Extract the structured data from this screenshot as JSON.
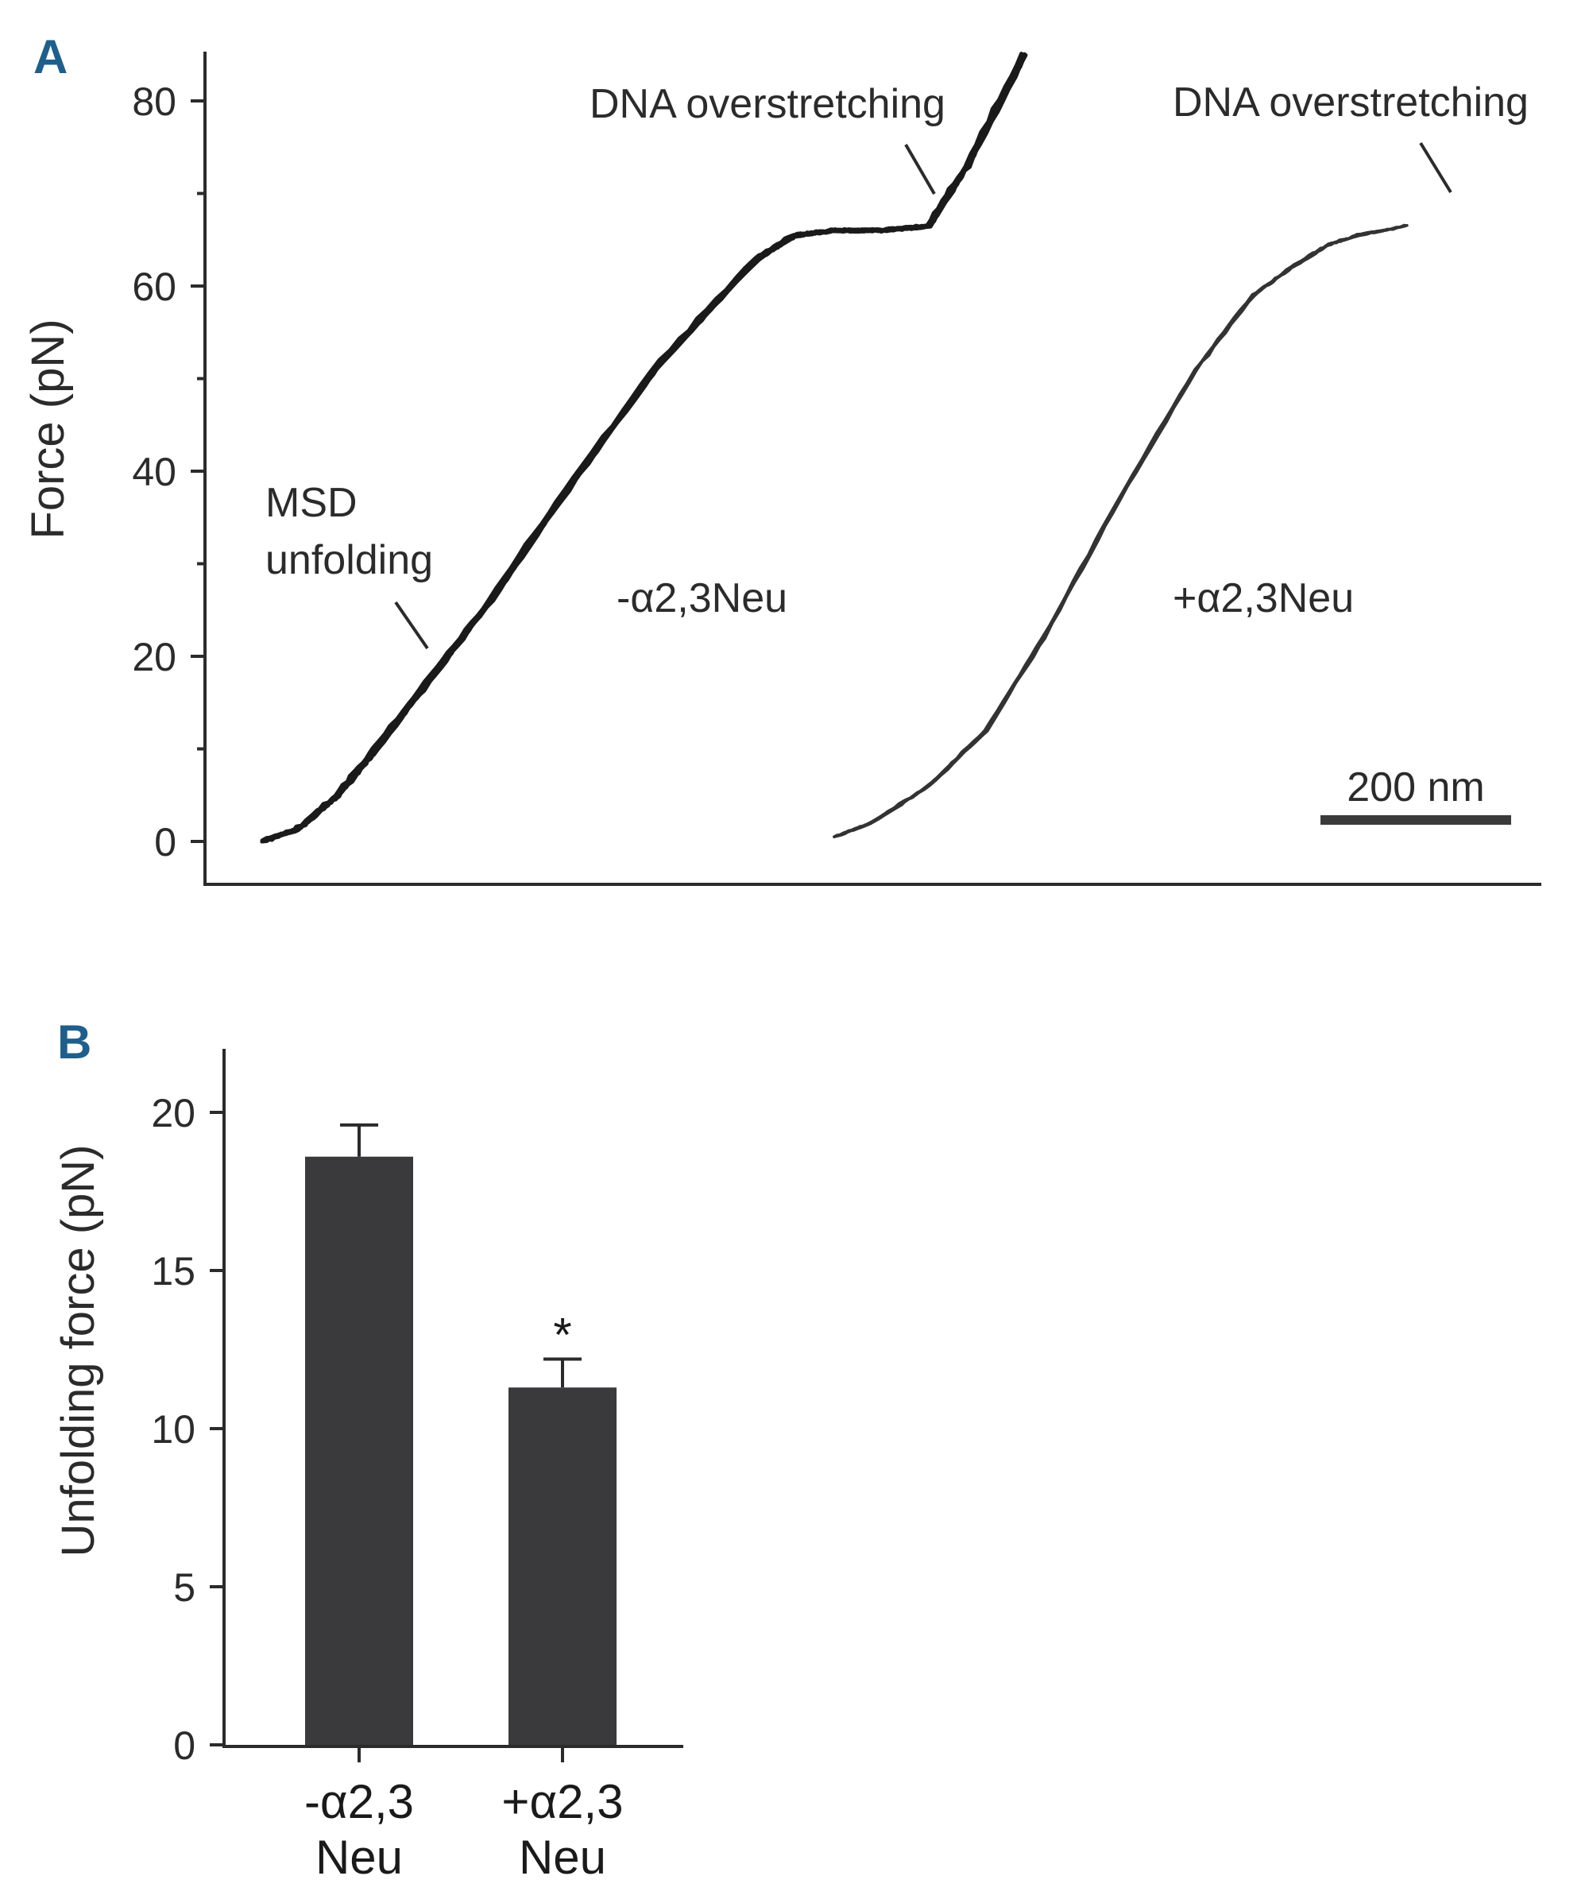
{
  "chart_data": [
    {
      "panel": "A",
      "type": "line",
      "title": "",
      "xlabel": "",
      "ylabel": "Force (pN)",
      "yticks": [
        "0",
        "20",
        "40",
        "60",
        "80"
      ],
      "ylim": [
        -5,
        85
      ],
      "xlim": [
        0,
        1400
      ],
      "scale_bar": {
        "label": "200 nm",
        "length": 200
      },
      "grid": false,
      "series": [
        {
          "label": "-α2,3Neu",
          "x": [
            0,
            40,
            80,
            120,
            180,
            240,
            320,
            420,
            520,
            560,
            600,
            650,
            700,
            740,
            800
          ],
          "y": [
            0,
            1.5,
            5,
            10,
            18,
            26,
            38,
            52,
            63,
            65.5,
            66,
            66,
            66.5,
            73,
            85
          ]
        },
        {
          "label": "+α2,3Neu",
          "x": [
            600,
            640,
            700,
            760,
            820,
            900,
            980,
            1040,
            1080,
            1120,
            1150,
            1200
          ],
          "y": [
            0.5,
            2,
            6,
            12,
            22,
            37,
            51,
            59,
            62,
            64.5,
            65.5,
            66.5
          ]
        }
      ],
      "annotations": [
        {
          "text_lines": [
            "MSD",
            "unfolding"
          ]
        },
        {
          "text_lines": [
            "DNA overstretching"
          ]
        },
        {
          "text_lines": [
            "DNA overstretching"
          ]
        }
      ]
    },
    {
      "panel": "B",
      "type": "bar",
      "title": "",
      "xlabel": "",
      "ylabel": "Unfolding force (pN)",
      "yticks": [
        "0",
        "5",
        "10",
        "15",
        "20"
      ],
      "ylim": [
        0,
        22
      ],
      "categories": [
        [
          "-α2,3",
          "Neu"
        ],
        [
          "+α2,3",
          "Neu"
        ]
      ],
      "values": [
        18.6,
        11.3
      ],
      "error": [
        1.0,
        0.9
      ],
      "significance": [
        "",
        "*"
      ],
      "bar_color": "#3a3a3c",
      "grid": false
    }
  ]
}
